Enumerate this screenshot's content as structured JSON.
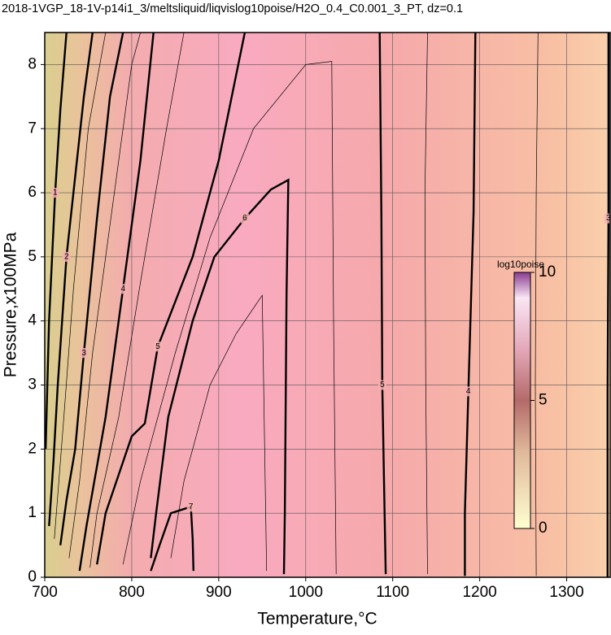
{
  "chart_data": {
    "type": "contour",
    "title": "2018-1VGP_18-1V-p14i1_3/meltsliquid/liqvislog10poise/H2O_0.4_C0.001_3_PT, dz=0.1",
    "x_label": "Temperature,°C",
    "y_label": "Pressure,x100MPa",
    "xlim": [
      700,
      1350
    ],
    "ylim": [
      0,
      8.5
    ],
    "xticks": [
      700,
      800,
      900,
      1000,
      1100,
      1200,
      1300
    ],
    "yticks": [
      0,
      1,
      2,
      3,
      4,
      5,
      6,
      7,
      8
    ],
    "grid": true,
    "colorbar": {
      "label": "log10poise",
      "lim": [
        0,
        10
      ],
      "ticks": [
        0,
        5,
        10
      ]
    },
    "contours": [
      {
        "level": 7,
        "x": [
          822,
          832,
          845,
          868,
          870,
          871
        ],
        "y": [
          0.1,
          0.5,
          1.0,
          1.1,
          0.6,
          0.1
        ]
      },
      {
        "level": 6,
        "x": [
          822,
          828,
          842,
          870,
          895,
          930,
          960,
          980,
          978,
          976,
          975
        ],
        "y": [
          0.3,
          1.0,
          2.5,
          4.0,
          5.0,
          5.6,
          6.05,
          6.2,
          4.4,
          1.0,
          0.05
        ]
      },
      {
        "level": 5,
        "x": [
          760,
          770,
          800,
          815,
          830,
          870,
          900,
          930
        ],
        "y": [
          0.2,
          1.0,
          2.2,
          2.4,
          3.6,
          5.0,
          6.5,
          8.5
        ]
      },
      {
        "level": 5,
        "x": [
          1092,
          1090,
          1088,
          1087,
          1085
        ],
        "y": [
          0.05,
          1.5,
          3.0,
          5.6,
          8.5
        ]
      },
      {
        "level": 4,
        "x": [
          740,
          748,
          770,
          790,
          810,
          825
        ],
        "y": [
          0.1,
          0.8,
          2.5,
          4.5,
          6.5,
          8.5
        ]
      },
      {
        "level": 4,
        "x": [
          1183,
          1183,
          1187,
          1193,
          1195
        ],
        "y": [
          0.02,
          1.0,
          2.9,
          5.7,
          8.5
        ]
      },
      {
        "level": 3,
        "x": [
          1347,
          1347,
          1348,
          1348
        ],
        "y": [
          0,
          2.9,
          5.6,
          8.5
        ]
      },
      {
        "level": 3,
        "x": [
          718,
          725,
          735,
          745,
          760,
          775,
          790
        ],
        "y": [
          0.5,
          1.2,
          2.0,
          3.5,
          5.6,
          7.5,
          8.5
        ]
      },
      {
        "level": 2,
        "x": [
          705,
          710,
          715,
          725,
          745,
          755
        ],
        "y": [
          0.8,
          1.8,
          3.0,
          5.0,
          7.5,
          8.5
        ]
      },
      {
        "level": 1,
        "x": [
          701,
          705,
          712,
          718,
          725
        ],
        "y": [
          2.0,
          4.0,
          6.0,
          7.3,
          8.5
        ]
      },
      {
        "level": 6.5,
        "x": [
          845,
          860,
          890,
          920,
          950,
          955
        ],
        "y": [
          0.3,
          1.5,
          3.0,
          3.8,
          4.4,
          0.1
        ]
      },
      {
        "level": 5.5,
        "x": [
          790,
          810,
          850,
          890,
          940,
          1000,
          1030,
          1032,
          1035
        ],
        "y": [
          0.2,
          1.5,
          3.5,
          5.3,
          7.0,
          8.0,
          8.05,
          4.0,
          0.05
        ]
      },
      {
        "level": 4.5,
        "x": [
          752,
          760,
          785,
          810,
          840,
          860
        ],
        "y": [
          0.15,
          1.0,
          2.5,
          4.6,
          7.0,
          8.5
        ]
      },
      {
        "level": 4.5,
        "x": [
          1140,
          1138,
          1137,
          1140
        ],
        "y": [
          0.05,
          3.0,
          6.0,
          8.5
        ]
      },
      {
        "level": 3.5,
        "x": [
          1265,
          1264,
          1265,
          1267
        ],
        "y": [
          0.02,
          3.0,
          6.0,
          8.5
        ]
      },
      {
        "level": 3.5,
        "x": [
          728,
          740,
          755,
          775,
          800,
          810
        ],
        "y": [
          0.3,
          1.5,
          3.5,
          5.5,
          8.0,
          8.5
        ]
      },
      {
        "level": 2.5,
        "x": [
          711,
          722,
          733,
          750,
          770
        ],
        "y": [
          0.6,
          2.5,
          4.5,
          7.0,
          8.5
        ]
      }
    ]
  }
}
